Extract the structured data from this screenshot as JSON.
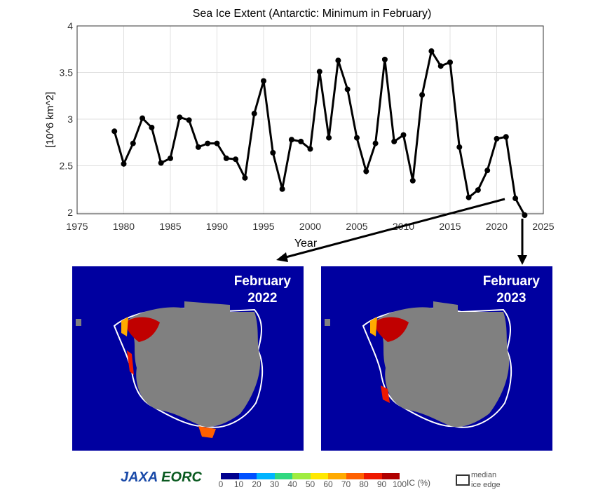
{
  "chart_data": {
    "type": "line",
    "title": "Sea Ice Extent (Antarctic: Minimum in February)",
    "xlabel": "Year",
    "ylabel": "[10^6 km^2]",
    "xlim": [
      1975,
      2025
    ],
    "ylim": [
      2,
      4
    ],
    "xticks": [
      1975,
      1980,
      1985,
      1990,
      1995,
      2000,
      2005,
      2010,
      2015,
      2020,
      2025
    ],
    "yticks": [
      2,
      2.5,
      3,
      3.5,
      4
    ],
    "ytick_labels": [
      "2",
      "2.5",
      "3",
      "3.5",
      "4"
    ],
    "grid": true,
    "line_color": "#000000",
    "x": [
      1979,
      1980,
      1981,
      1982,
      1983,
      1984,
      1985,
      1986,
      1987,
      1988,
      1989,
      1990,
      1991,
      1992,
      1993,
      1994,
      1995,
      1996,
      1997,
      1998,
      1999,
      2000,
      2001,
      2002,
      2003,
      2004,
      2005,
      2006,
      2007,
      2008,
      2009,
      2010,
      2011,
      2012,
      2013,
      2014,
      2015,
      2016,
      2017,
      2018,
      2019,
      2020,
      2021,
      2022,
      2023
    ],
    "y": [
      2.87,
      2.52,
      2.74,
      3.01,
      2.91,
      2.53,
      2.58,
      3.02,
      2.99,
      2.7,
      2.74,
      2.74,
      2.58,
      2.57,
      2.37,
      3.06,
      3.41,
      2.64,
      2.25,
      2.78,
      2.76,
      2.68,
      3.51,
      2.8,
      3.63,
      3.32,
      2.8,
      2.44,
      2.74,
      3.64,
      2.76,
      2.83,
      2.34,
      3.26,
      3.73,
      3.57,
      3.61,
      2.7,
      2.16,
      2.24,
      2.45,
      2.79,
      2.81,
      2.15,
      1.97
    ]
  },
  "maps": [
    {
      "label_line1": "February",
      "label_line2": "2022"
    },
    {
      "label_line1": "February",
      "label_line2": "2023"
    }
  ],
  "colors": {
    "ocean": "#0000a0",
    "land": "#808080",
    "ice_high": "#c00000"
  },
  "footer": {
    "logo_jaxa": "JAXA",
    "logo_eorc": "EORC",
    "colorbar_colors": [
      "#00008f",
      "#0050ff",
      "#00b4ff",
      "#30d880",
      "#a0ec40",
      "#ffe800",
      "#ffaa00",
      "#ff6000",
      "#ee1800",
      "#b00000"
    ],
    "colorbar_ticks": [
      "0",
      "10",
      "20",
      "30",
      "40",
      "50",
      "60",
      "70",
      "80",
      "90",
      "100"
    ],
    "colorbar_unit": "IC (%)",
    "legend_line1": "median",
    "legend_line2": "ice edge"
  }
}
